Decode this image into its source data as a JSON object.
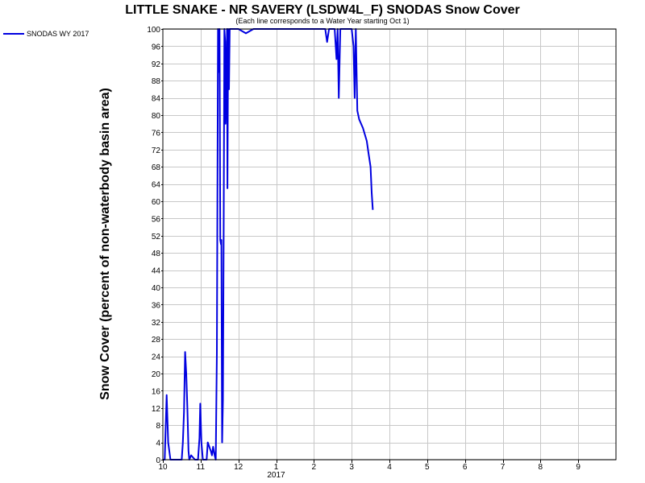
{
  "chart_data": {
    "type": "line",
    "title": "LITTLE SNAKE - NR SAVERY (LSDW4L_F) SNODAS Snow Cover",
    "subtitle": "(Each line corresponds to a Water Year starting Oct 1)",
    "ylabel": "Snow Cover (percent of non-waterbody basin area)",
    "xlabel": "",
    "ylim": [
      0,
      100
    ],
    "y_ticks": [
      "0",
      "4",
      "8",
      "12",
      "16",
      "20",
      "24",
      "28",
      "32",
      "36",
      "40",
      "44",
      "48",
      "52",
      "56",
      "60",
      "64",
      "68",
      "72",
      "76",
      "80",
      "84",
      "88",
      "92",
      "96",
      "100"
    ],
    "xlim": [
      0,
      12
    ],
    "x_ticks": [
      {
        "value": 0,
        "label": "10"
      },
      {
        "value": 1,
        "label": "11"
      },
      {
        "value": 2,
        "label": "12"
      },
      {
        "value": 3,
        "label": "1"
      },
      {
        "value": 4,
        "label": "2"
      },
      {
        "value": 5,
        "label": "3"
      },
      {
        "value": 6,
        "label": "4"
      },
      {
        "value": 7,
        "label": "5"
      },
      {
        "value": 8,
        "label": "6"
      },
      {
        "value": 9,
        "label": "7"
      },
      {
        "value": 10,
        "label": "8"
      },
      {
        "value": 11,
        "label": "9"
      }
    ],
    "x_year_label": {
      "value": 3,
      "label": "2017"
    },
    "grid": true,
    "legend_position": "top-left",
    "series": [
      {
        "name": "SNODAS WY 2017",
        "color": "#0000e0",
        "points": [
          [
            0.0,
            0
          ],
          [
            0.05,
            0
          ],
          [
            0.1,
            15
          ],
          [
            0.14,
            4
          ],
          [
            0.2,
            0
          ],
          [
            0.4,
            0
          ],
          [
            0.5,
            0
          ],
          [
            0.53,
            4
          ],
          [
            0.56,
            11
          ],
          [
            0.59,
            25
          ],
          [
            0.62,
            20
          ],
          [
            0.65,
            12
          ],
          [
            0.68,
            2
          ],
          [
            0.7,
            0
          ],
          [
            0.75,
            1
          ],
          [
            0.85,
            0
          ],
          [
            0.93,
            0
          ],
          [
            0.97,
            5
          ],
          [
            0.99,
            13
          ],
          [
            1.02,
            4
          ],
          [
            1.06,
            0
          ],
          [
            1.16,
            0
          ],
          [
            1.19,
            4
          ],
          [
            1.23,
            3
          ],
          [
            1.27,
            2
          ],
          [
            1.3,
            1
          ],
          [
            1.33,
            3
          ],
          [
            1.37,
            1
          ],
          [
            1.4,
            0
          ],
          [
            1.43,
            25
          ],
          [
            1.46,
            100
          ],
          [
            1.48,
            90
          ],
          [
            1.5,
            100
          ],
          [
            1.52,
            51
          ],
          [
            1.54,
            50
          ],
          [
            1.55,
            51
          ],
          [
            1.57,
            4
          ],
          [
            1.59,
            14
          ],
          [
            1.61,
            52
          ],
          [
            1.63,
            100
          ],
          [
            1.65,
            97
          ],
          [
            1.66,
            78
          ],
          [
            1.68,
            85
          ],
          [
            1.7,
            100
          ],
          [
            1.71,
            63
          ],
          [
            1.73,
            100
          ],
          [
            1.75,
            86
          ],
          [
            1.77,
            100
          ],
          [
            2.0,
            100
          ],
          [
            2.2,
            99
          ],
          [
            2.4,
            100
          ],
          [
            2.9,
            100
          ],
          [
            3.0,
            100
          ],
          [
            4.3,
            100
          ],
          [
            4.35,
            97
          ],
          [
            4.4,
            100
          ],
          [
            4.55,
            100
          ],
          [
            4.6,
            93
          ],
          [
            4.63,
            100
          ],
          [
            4.66,
            84
          ],
          [
            4.7,
            100
          ],
          [
            5.0,
            100
          ],
          [
            5.05,
            96
          ],
          [
            5.08,
            84
          ],
          [
            5.11,
            100
          ],
          [
            5.15,
            81
          ],
          [
            5.2,
            79
          ],
          [
            5.3,
            77
          ],
          [
            5.4,
            74
          ],
          [
            5.45,
            71
          ],
          [
            5.5,
            68
          ],
          [
            5.53,
            62
          ],
          [
            5.56,
            58
          ]
        ]
      }
    ]
  }
}
